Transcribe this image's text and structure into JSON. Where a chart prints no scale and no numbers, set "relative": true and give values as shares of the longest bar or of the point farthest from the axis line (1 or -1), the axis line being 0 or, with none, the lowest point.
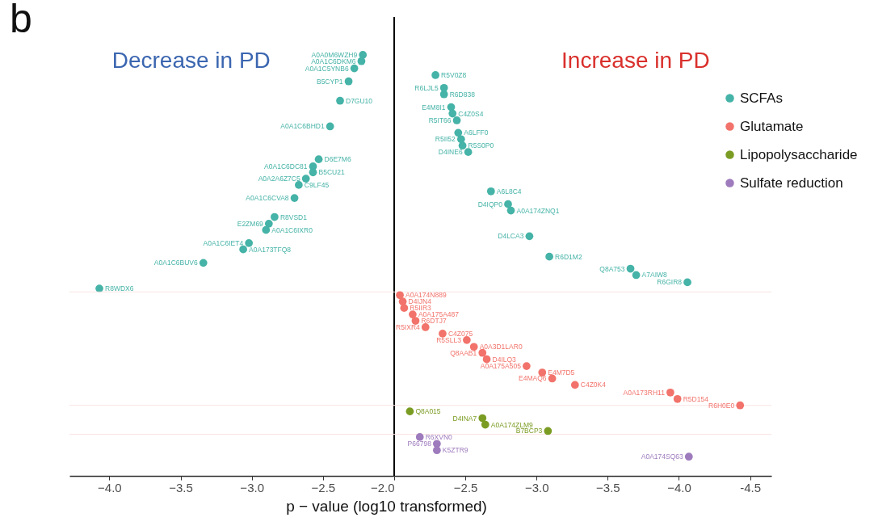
{
  "chart_data": [
    {
      "type": "scatter",
      "title": "b",
      "xlabel": "p − value (log10 transformed)",
      "relative": true,
      "marker": "circle",
      "xlim": [
        -4.28,
        -2
      ],
      "xticks": [
        {
          "value": -4,
          "label": "−4.0"
        },
        {
          "value": -3.5,
          "label": "−3.5"
        },
        {
          "value": -3,
          "label": "−3.0"
        },
        {
          "value": -2.5,
          "label": "−2.5"
        },
        {
          "value": -2,
          "label": "−2.0"
        }
      ],
      "ref_lines": [
        {
          "axis": "x",
          "value": -2,
          "color": "#000000"
        },
        {
          "axis": "y",
          "value": 0.437,
          "color": "#fbe4e4"
        },
        {
          "axis": "y",
          "value": 0.168,
          "color": "#fbe4e4"
        },
        {
          "axis": "y",
          "value": 0.099,
          "color": "#fbe4e4"
        }
      ],
      "series": [
        {
          "color": "#45b3a7",
          "x": [
            -2.22,
            -2.23,
            -2.28,
            -2.32,
            -2.38,
            -2.45,
            -2.53,
            -2.57,
            -2.57,
            -2.62,
            -2.67,
            -2.7,
            -2.84,
            -2.88,
            -2.9,
            -3.02,
            -3.06,
            -3.34,
            -4.07
          ],
          "values": [
            1.0,
            0.985,
            0.968,
            0.937,
            0.891,
            0.83,
            0.752,
            0.735,
            0.721,
            0.706,
            0.691,
            0.66,
            0.615,
            0.599,
            0.584,
            0.553,
            0.538,
            0.506,
            0.445
          ]
        }
      ],
      "annotations": [
        "Decrease in PD",
        {
          "text": "A0A0M6WZH9",
          "x": -2.22,
          "y": 1.0
        },
        {
          "text": "A0A1C6DKM6",
          "x": -2.23,
          "y": 0.985
        },
        {
          "text": "A0A1C5YNB6",
          "x": -2.28,
          "y": 0.968
        },
        {
          "text": "B5CYP1",
          "x": -2.32,
          "y": 0.937
        },
        {
          "text": "D7GU10",
          "x": -2.38,
          "y": 0.891
        },
        {
          "text": "A0A1C6BHD1",
          "x": -2.45,
          "y": 0.83
        },
        {
          "text": "D6E7M6",
          "x": -2.53,
          "y": 0.752
        },
        {
          "text": "A0A1C6DC81",
          "x": -2.57,
          "y": 0.735
        },
        {
          "text": "B5CU21",
          "x": -2.57,
          "y": 0.721
        },
        {
          "text": "A0A2A6Z7C5",
          "x": -2.62,
          "y": 0.706
        },
        {
          "text": "C9LF45",
          "x": -2.67,
          "y": 0.691
        },
        {
          "text": "A0A1C6CVA8",
          "x": -2.7,
          "y": 0.66
        },
        {
          "text": "R8VSD1",
          "x": -2.84,
          "y": 0.615
        },
        {
          "text": "E2ZM69",
          "x": -2.88,
          "y": 0.599
        },
        {
          "text": "A0A1C6IXR0",
          "x": -2.9,
          "y": 0.584
        },
        {
          "text": "A0A1C6IET4",
          "x": -3.02,
          "y": 0.553
        },
        {
          "text": "A0A173TFQ8",
          "x": -3.06,
          "y": 0.538
        },
        {
          "text": "A0A1C6BUV6",
          "x": -3.34,
          "y": 0.506
        },
        {
          "text": "R8WDX6",
          "x": -4.07,
          "y": 0.445
        }
      ]
    },
    {
      "type": "scatter",
      "relative": true,
      "marker": "circle",
      "legend": "top right",
      "xlim": [
        -2,
        -4.65
      ],
      "xticks": [
        {
          "value": -2.5,
          "label": "−2.5"
        },
        {
          "value": -3,
          "label": "−3.0"
        },
        {
          "value": -3.5,
          "label": "−3.5"
        },
        {
          "value": -4,
          "label": "−4.0"
        },
        -4.5
      ],
      "ref_lines": [
        {
          "axis": "y",
          "value": 0.459,
          "color": "#fbe4e4"
        },
        {
          "axis": "y",
          "value": 0.176,
          "color": "#fbe4e4"
        },
        {
          "axis": "y",
          "value": 0.104,
          "color": "#fbe4e4"
        }
      ],
      "series": [
        {
          "name": "SCFAs",
          "color": "#45b3a7",
          "x": [
            -2.29,
            -2.35,
            -2.35,
            -2.4,
            -2.41,
            -2.44,
            -2.45,
            -2.47,
            -2.48,
            -2.52,
            -2.68,
            -2.8,
            -2.82,
            -2.95,
            -3.09,
            -3.66,
            -3.7,
            -4.06
          ],
          "values": [
            1.0,
            0.968,
            0.952,
            0.92,
            0.904,
            0.887,
            0.856,
            0.84,
            0.824,
            0.808,
            0.71,
            0.678,
            0.662,
            0.598,
            0.547,
            0.517,
            0.501,
            0.483
          ]
        },
        {
          "name": "Glutamate",
          "color": "#f2736b",
          "x": [
            -2.04,
            -2.06,
            -2.07,
            -2.13,
            -2.15,
            -2.22,
            -2.34,
            -2.51,
            -2.56,
            -2.62,
            -2.65,
            -2.93,
            -3.04,
            -3.11,
            -3.27,
            -3.94,
            -3.99,
            -4.43
          ],
          "values": [
            0.451,
            0.435,
            0.419,
            0.403,
            0.387,
            0.371,
            0.355,
            0.339,
            0.322,
            0.307,
            0.291,
            0.274,
            0.258,
            0.243,
            0.227,
            0.208,
            0.192,
            0.176
          ]
        },
        {
          "name": "Lipopolysaccharide",
          "color": "#7b9c23",
          "x": [
            -2.11,
            -2.62,
            -2.64,
            -3.08
          ],
          "values": [
            0.161,
            0.144,
            0.128,
            0.112
          ]
        },
        {
          "name": "Sulfate reduction",
          "color": "#9e7bbd",
          "x": [
            -2.18,
            -2.3,
            -2.3,
            -4.07
          ],
          "values": [
            0.097,
            0.08,
            0.064,
            0.048
          ]
        }
      ],
      "annotations": [
        "Increase in PD",
        {
          "text": "R5V0Z8",
          "x": -2.29,
          "y": 1.0
        },
        {
          "text": "R6LJL5",
          "x": -2.35,
          "y": 0.968
        },
        {
          "text": "R6D838",
          "x": -2.35,
          "y": 0.952
        },
        {
          "text": "E4M8I1",
          "x": -2.4,
          "y": 0.92
        },
        {
          "text": "C4Z0S4",
          "x": -2.41,
          "y": 0.904
        },
        {
          "text": "R5IT66",
          "x": -2.44,
          "y": 0.887
        },
        {
          "text": "A6LFF0",
          "x": -2.45,
          "y": 0.856
        },
        {
          "text": "R5II52",
          "x": -2.47,
          "y": 0.84
        },
        {
          "text": "R5S0P0",
          "x": -2.48,
          "y": 0.824
        },
        {
          "text": "D4INE6",
          "x": -2.52,
          "y": 0.808
        },
        {
          "text": "A6L8C4",
          "x": -2.68,
          "y": 0.71
        },
        {
          "text": "D4IQP0",
          "x": -2.8,
          "y": 0.678
        },
        {
          "text": "A0A174ZNQ1",
          "x": -2.82,
          "y": 0.662
        },
        {
          "text": "D4LCA3",
          "x": -2.95,
          "y": 0.598
        },
        {
          "text": "R6D1M2",
          "x": -3.09,
          "y": 0.547
        },
        {
          "text": "Q8A753",
          "x": -3.66,
          "y": 0.517
        },
        {
          "text": "A7AIW8",
          "x": -3.7,
          "y": 0.501
        },
        {
          "text": "R6GIR8",
          "x": -4.06,
          "y": 0.483
        },
        {
          "text": "A0A174N889",
          "x": -2.04,
          "y": 0.451
        },
        {
          "text": "D4IJN4",
          "x": -2.06,
          "y": 0.435
        },
        {
          "text": "R5IIR3",
          "x": -2.07,
          "y": 0.419
        },
        {
          "text": "A0A175A487",
          "x": -2.13,
          "y": 0.403
        },
        {
          "text": "R6DTJ7",
          "x": -2.15,
          "y": 0.387
        },
        {
          "text": "R5IXR4",
          "x": -2.22,
          "y": 0.371
        },
        {
          "text": "C4Z075",
          "x": -2.34,
          "y": 0.355
        },
        {
          "text": "R5SLL3",
          "x": -2.51,
          "y": 0.339
        },
        {
          "text": "A0A3D1LAR0",
          "x": -2.56,
          "y": 0.322
        },
        {
          "text": "Q8AAB1",
          "x": -2.62,
          "y": 0.307
        },
        {
          "text": "D4ILQ3",
          "x": -2.65,
          "y": 0.291
        },
        {
          "text": "A0A175A505",
          "x": -2.93,
          "y": 0.274
        },
        {
          "text": "E4M7D5",
          "x": -3.04,
          "y": 0.258
        },
        {
          "text": "E4MAQ6",
          "x": -3.11,
          "y": 0.243
        },
        {
          "text": "C4Z0K4",
          "x": -3.27,
          "y": 0.227
        },
        {
          "text": "A0A173RH11",
          "x": -3.94,
          "y": 0.208
        },
        {
          "text": "R5D154",
          "x": -3.99,
          "y": 0.192
        },
        {
          "text": "R6H0E0",
          "x": -4.43,
          "y": 0.176
        },
        {
          "text": "Q8A015",
          "x": -2.11,
          "y": 0.161
        },
        {
          "text": "D4INA7",
          "x": -2.62,
          "y": 0.144
        },
        {
          "text": "A0A174ZLM9",
          "x": -2.64,
          "y": 0.128
        },
        {
          "text": "B7BCP3",
          "x": -3.08,
          "y": 0.112
        },
        {
          "text": "R6XVN0",
          "x": -2.18,
          "y": 0.097
        },
        {
          "text": "P66798",
          "x": -2.3,
          "y": 0.08
        },
        {
          "text": "K5ZTR9",
          "x": -2.3,
          "y": 0.064
        },
        {
          "text": "A0A174SQ63",
          "x": -4.07,
          "y": 0.048
        }
      ]
    }
  ]
}
